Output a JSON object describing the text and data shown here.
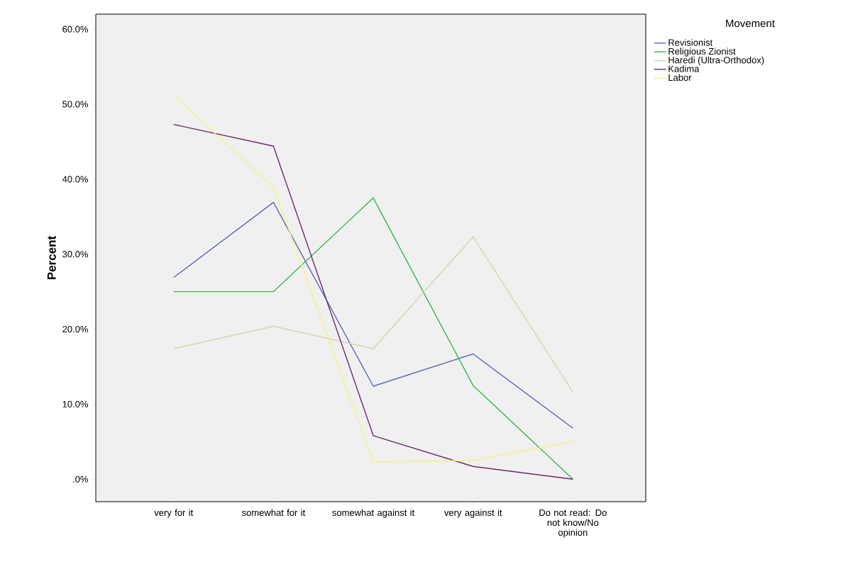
{
  "chart_data": {
    "type": "line",
    "ylabel": "Percent",
    "legend_title": "Movement",
    "legend": "top right",
    "categories": [
      "very for it",
      "somewhat for it",
      "somewhat against it",
      "very against it",
      "Do not read: Do not know/No opinion"
    ],
    "ylim": [
      -3,
      62
    ],
    "yticks": [
      {
        "value": 0,
        "label": ".0%"
      },
      {
        "value": 10,
        "label": "10.0%"
      },
      {
        "value": 20,
        "label": "20.0%"
      },
      {
        "value": 30,
        "label": "30.0%"
      },
      {
        "value": 40,
        "label": "40.0%"
      },
      {
        "value": 50,
        "label": "50.0%"
      },
      {
        "value": 60,
        "label": "60.0%"
      }
    ],
    "series": [
      {
        "name": "Revisionist",
        "color": "#5a6bb5",
        "values": [
          26.9,
          36.9,
          12.4,
          16.7,
          6.8
        ]
      },
      {
        "name": "Religious Zionist",
        "color": "#3cb550",
        "values": [
          25.0,
          25.0,
          37.5,
          12.5,
          0
        ]
      },
      {
        "name": "Haredi (Ultra-Orthodox)",
        "color": "#d6d2ae",
        "values": [
          17.4,
          20.4,
          17.4,
          32.3,
          11.6
        ]
      },
      {
        "name": "Kadima",
        "color": "#6b2a6e",
        "values": [
          47.3,
          44.4,
          5.8,
          1.7,
          0
        ]
      },
      {
        "name": "Labor",
        "color": "#f4f27f",
        "values": [
          51.2,
          38.9,
          2.3,
          2.5,
          5.0
        ]
      }
    ]
  }
}
